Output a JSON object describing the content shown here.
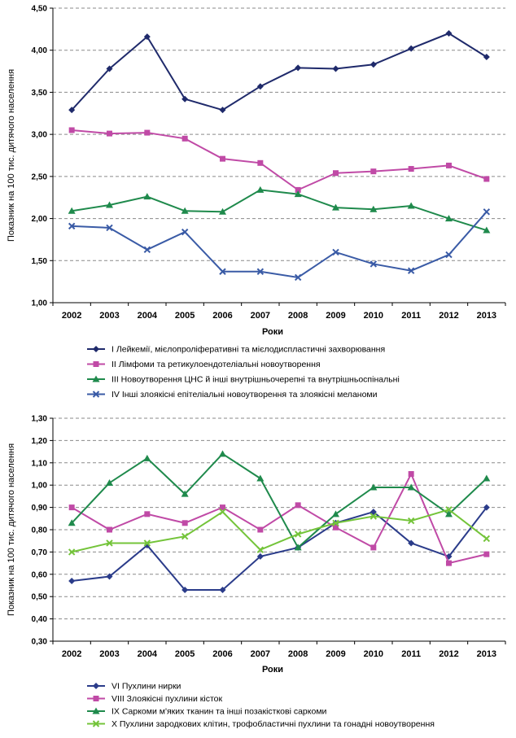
{
  "chart_data": [
    {
      "type": "line",
      "title": "",
      "xlabel": "Роки",
      "ylabel": "Показник на 100 тис. дитячого населення",
      "categories": [
        "2002",
        "2003",
        "2004",
        "2005",
        "2006",
        "2007",
        "2008",
        "2009",
        "2010",
        "2011",
        "2012",
        "2013"
      ],
      "ylim": [
        1.0,
        4.5
      ],
      "yticks": [
        "1,00",
        "1,50",
        "2,00",
        "2,50",
        "3,00",
        "3,50",
        "4,00",
        "4,50"
      ],
      "grid": true,
      "legend_position": "bottom",
      "series": [
        {
          "name": "I Лейкемії, мієлопроліферативні та мієлодиспластичні захворювання",
          "color": "#1f2a6b",
          "marker": "diamond",
          "values": [
            3.29,
            3.78,
            4.16,
            3.42,
            3.29,
            3.57,
            3.79,
            3.78,
            3.83,
            4.02,
            4.2,
            3.92
          ]
        },
        {
          "name": "II Лімфоми та ретикулоендотеліальні новоутворення",
          "color": "#c04aa6",
          "marker": "square",
          "values": [
            3.05,
            3.01,
            3.02,
            2.95,
            2.71,
            2.66,
            2.34,
            2.54,
            2.56,
            2.59,
            2.63,
            2.47
          ]
        },
        {
          "name": "III Новоутворення ЦНС й інші внутрішньочерепні та внутрішньоспінальні",
          "color": "#1f8a4c",
          "marker": "triangle",
          "values": [
            2.09,
            2.16,
            2.26,
            2.09,
            2.08,
            2.34,
            2.29,
            2.13,
            2.11,
            2.15,
            2.0,
            1.86
          ]
        },
        {
          "name": "IV Інші злоякісні епітеліальні новоутворення та злоякісні меланоми",
          "color": "#3a5ba6",
          "marker": "x",
          "values": [
            1.91,
            1.89,
            1.63,
            1.84,
            1.37,
            1.37,
            1.3,
            1.6,
            1.46,
            1.38,
            1.57,
            2.08
          ]
        }
      ]
    },
    {
      "type": "line",
      "title": "",
      "xlabel": "Роки",
      "ylabel": "Показник на 100 тис. дитячого населення",
      "categories": [
        "2002",
        "2003",
        "2004",
        "2005",
        "2006",
        "2007",
        "2008",
        "2009",
        "2010",
        "2011",
        "2012",
        "2013"
      ],
      "ylim": [
        0.3,
        1.3
      ],
      "yticks": [
        "0,30",
        "0,40",
        "0,50",
        "0,60",
        "0,70",
        "0,80",
        "0,90",
        "1,00",
        "1,10",
        "1,20",
        "1,30"
      ],
      "grid": true,
      "legend_position": "bottom",
      "series": [
        {
          "name": "VI Пухлини нирки",
          "color": "#2b3c8a",
          "marker": "diamond",
          "values": [
            0.57,
            0.59,
            0.73,
            0.53,
            0.53,
            0.68,
            0.72,
            0.83,
            0.88,
            0.74,
            0.68,
            0.9
          ]
        },
        {
          "name": "VIII Злоякісні пухлини кісток",
          "color": "#c04aa6",
          "marker": "square",
          "values": [
            0.9,
            0.8,
            0.87,
            0.83,
            0.9,
            0.8,
            0.91,
            0.81,
            0.72,
            1.05,
            0.65,
            0.69
          ]
        },
        {
          "name": "IX Саркоми м'яких тканин та інші позакісткові саркоми",
          "color": "#1f8a4c",
          "marker": "triangle",
          "values": [
            0.83,
            1.01,
            1.12,
            0.96,
            1.14,
            1.03,
            0.72,
            0.87,
            0.99,
            0.99,
            0.87,
            1.03
          ]
        },
        {
          "name": "X Пухлини зародкових клітин, трофобластичні пухлини та гонадні новоутворення",
          "color": "#74c43a",
          "marker": "x",
          "values": [
            0.7,
            0.74,
            0.74,
            0.77,
            0.88,
            0.71,
            0.78,
            0.83,
            0.86,
            0.84,
            0.89,
            0.76
          ]
        }
      ]
    }
  ]
}
